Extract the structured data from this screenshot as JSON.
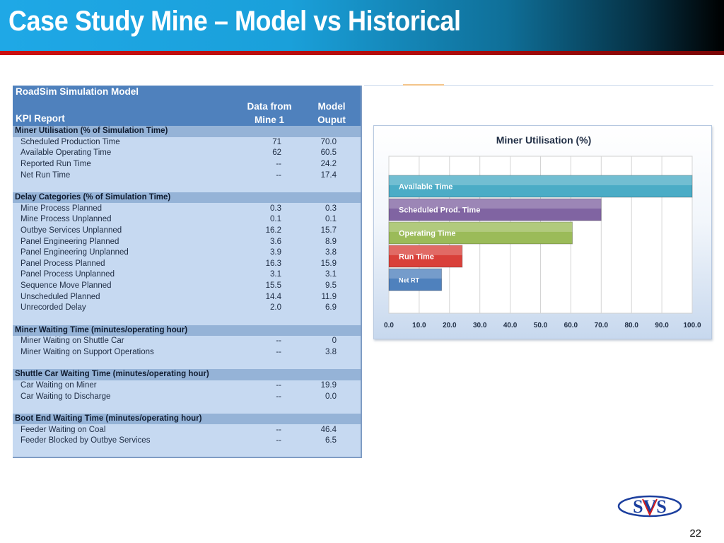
{
  "slide": {
    "title": "Case Study Mine – Model vs Historical",
    "page_number": "22",
    "logo_text": "SVS"
  },
  "kpi_table": {
    "title": "RoadSim Simulation Model",
    "subtitle": "KPI Report",
    "col1_header_line1": "Data from",
    "col1_header_line2": "Mine 1",
    "col2_header_line1": "Model",
    "col2_header_line2": "Ouput",
    "rows": [
      {
        "type": "section",
        "label": "Miner Utilisation (% of Simulation Time)",
        "v1": "",
        "v2": ""
      },
      {
        "type": "item",
        "label": "Scheduled Production Time",
        "v1": "71",
        "v2": "70.0"
      },
      {
        "type": "item",
        "label": "Available Operating Time",
        "v1": "62",
        "v2": "60.5"
      },
      {
        "type": "item",
        "label": "Reported Run Time",
        "v1": "--",
        "v2": "24.2"
      },
      {
        "type": "item",
        "label": "Net Run Time",
        "v1": "--",
        "v2": "17.4"
      },
      {
        "type": "blank",
        "label": "",
        "v1": "",
        "v2": ""
      },
      {
        "type": "section",
        "label": "Delay Categories (% of Simulation Time)",
        "v1": "",
        "v2": ""
      },
      {
        "type": "item",
        "label": "Mine Process Planned",
        "v1": "0.3",
        "v2": "0.3"
      },
      {
        "type": "item",
        "label": "Mine Process Unplanned",
        "v1": "0.1",
        "v2": "0.1"
      },
      {
        "type": "item",
        "label": "Outbye Services Unplanned",
        "v1": "16.2",
        "v2": "15.7"
      },
      {
        "type": "item",
        "label": "Panel Engineering Planned",
        "v1": "3.6",
        "v2": "8.9"
      },
      {
        "type": "item",
        "label": "Panel Engineering Unplanned",
        "v1": "3.9",
        "v2": "3.8"
      },
      {
        "type": "item",
        "label": "Panel Process Planned",
        "v1": "16.3",
        "v2": "15.9"
      },
      {
        "type": "item",
        "label": "Panel Process Unplanned",
        "v1": "3.1",
        "v2": "3.1"
      },
      {
        "type": "item",
        "label": "Sequence Move Planned",
        "v1": "15.5",
        "v2": "9.5"
      },
      {
        "type": "item",
        "label": "Unscheduled Planned",
        "v1": "14.4",
        "v2": "11.9"
      },
      {
        "type": "item",
        "label": "Unrecorded Delay",
        "v1": "2.0",
        "v2": "6.9"
      },
      {
        "type": "blank",
        "label": "",
        "v1": "",
        "v2": ""
      },
      {
        "type": "section",
        "label": "Miner Waiting Time (minutes/operating hour)",
        "v1": "",
        "v2": ""
      },
      {
        "type": "item",
        "label": "Miner Waiting on Shuttle Car",
        "v1": "--",
        "v2": "0"
      },
      {
        "type": "item",
        "label": "Miner Waiting on Support Operations",
        "v1": "--",
        "v2": "3.8"
      },
      {
        "type": "blank",
        "label": "",
        "v1": "",
        "v2": ""
      },
      {
        "type": "section",
        "label": "Shuttle Car Waiting Time (minutes/operating hour)",
        "v1": "",
        "v2": ""
      },
      {
        "type": "item",
        "label": "Car Waiting on Miner",
        "v1": "--",
        "v2": "19.9"
      },
      {
        "type": "item",
        "label": "Car Waiting to Discharge",
        "v1": "--",
        "v2": "0.0"
      },
      {
        "type": "blank",
        "label": "",
        "v1": "",
        "v2": ""
      },
      {
        "type": "section",
        "label": "Boot End Waiting Time (minutes/operating hour)",
        "v1": "",
        "v2": ""
      },
      {
        "type": "item",
        "label": "Feeder Waiting on Coal",
        "v1": "--",
        "v2": "46.4"
      },
      {
        "type": "item",
        "label": "Feeder Blocked by Outbye Services",
        "v1": "--",
        "v2": "6.5"
      }
    ]
  },
  "chart_data": {
    "type": "bar",
    "orientation": "horizontal",
    "title": "Miner Utilisation (%)",
    "xlabel": "",
    "ylabel": "",
    "xlim": [
      0,
      100
    ],
    "x_ticks": [
      "0.0",
      "10.0",
      "20.0",
      "30.0",
      "40.0",
      "50.0",
      "60.0",
      "70.0",
      "80.0",
      "90.0",
      "100.0"
    ],
    "grid": "vertical",
    "legend": "none",
    "categories": [
      "Available Time",
      "Scheduled Prod. Time",
      "Operating Time",
      "Run Time",
      "Net RT"
    ],
    "values": [
      100,
      70,
      60.5,
      24.2,
      17.4
    ],
    "colors": [
      "#4bacc6",
      "#8064a2",
      "#9bbb59",
      "#d9403a",
      "#4f81bd"
    ]
  }
}
